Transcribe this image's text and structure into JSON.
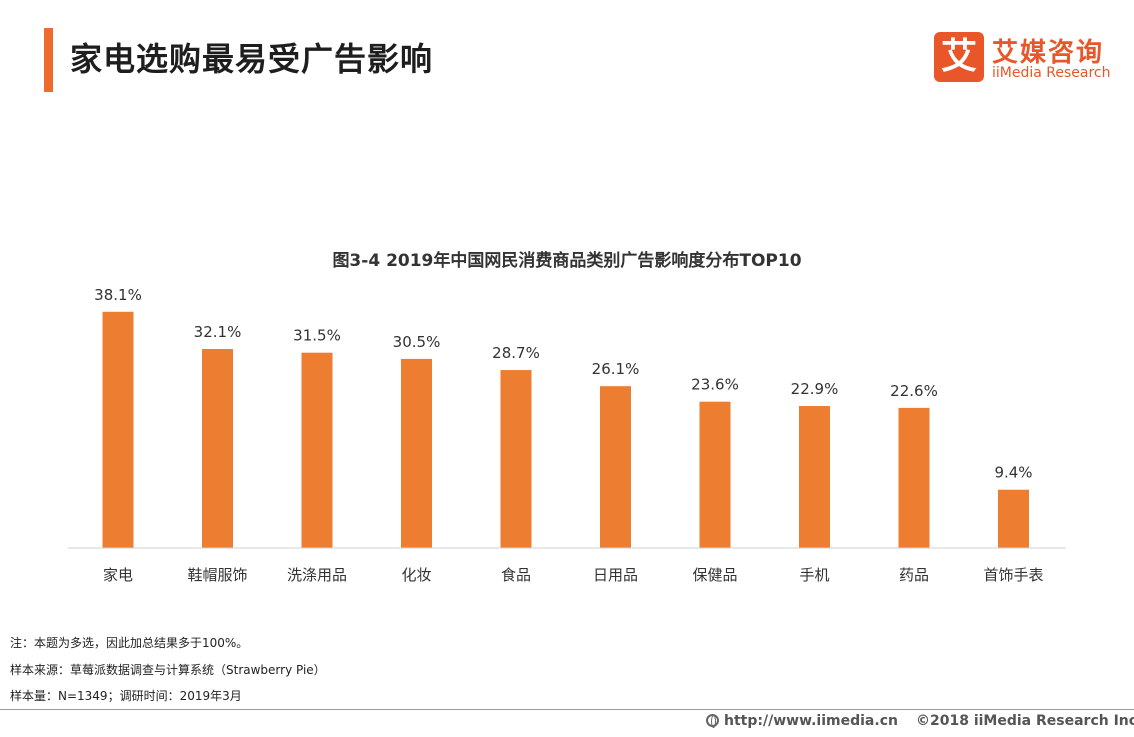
{
  "header": {
    "title": "家电选购最易受广告影响"
  },
  "logo": {
    "mark": "艾",
    "name_cn": "艾媒咨询",
    "name_en": "iiMedia Research"
  },
  "footnotes": {
    "note": "注：本题为多选，因此加总结果多于100%。",
    "source": "样本来源：草莓派数据调查与计算系统（Strawberry Pie）",
    "sample": "样本量：N=1349；调研时间：2019年3月"
  },
  "footer": {
    "url": "http://www.iimedia.cn",
    "copyright": "©2018  iiMedia Research  Inc"
  },
  "chart_data": {
    "type": "bar",
    "title": "图3-4 2019年中国网民消费商品类别广告影响度分布TOP10",
    "categories": [
      "家电",
      "鞋帽服饰",
      "洗涤用品",
      "化妆",
      "食品",
      "日用品",
      "保健品",
      "手机",
      "药品",
      "首饰手表"
    ],
    "values": [
      38.1,
      32.1,
      31.5,
      30.5,
      28.7,
      26.1,
      23.6,
      22.9,
      22.6,
      9.4
    ],
    "value_labels": [
      "38.1%",
      "32.1%",
      "31.5%",
      "30.5%",
      "28.7%",
      "26.1%",
      "23.6%",
      "22.9%",
      "22.6%",
      "9.4%"
    ],
    "ylim": [
      0,
      40
    ],
    "bar_color": "#ed7d31",
    "grid": false,
    "legend": "none"
  }
}
